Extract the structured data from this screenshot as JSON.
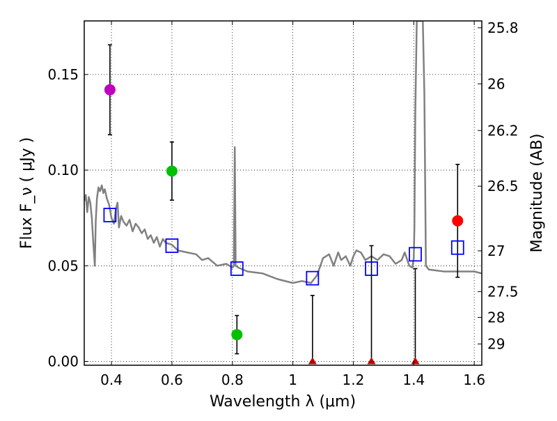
{
  "chart_data": {
    "type": "scatter",
    "title": "",
    "xlabel": "Wavelength  λ (μm)",
    "ylabel": "Flux  F_ν  ( μJy )",
    "ylabel2": "Magnitude (AB)",
    "xlim": [
      0.31,
      1.625
    ],
    "ylim": [
      -0.002,
      0.178
    ],
    "grid": true,
    "x_ticks": [
      0.4,
      0.6,
      0.8,
      1.0,
      1.2,
      1.4,
      1.6
    ],
    "x_tick_labels": [
      "0.4",
      "0.6",
      "0.8",
      "1",
      "1.2",
      "1.4",
      "1.6"
    ],
    "y_ticks": [
      0.0,
      0.05,
      0.1,
      0.15
    ],
    "y_tick_labels": [
      "0.00",
      "0.05",
      "0.10",
      "0.15"
    ],
    "right_ticks": [
      {
        "label": "25.8",
        "flux": 0.1744
      },
      {
        "label": "26",
        "flux": 0.1451
      },
      {
        "label": "26.2",
        "flux": 0.1207
      },
      {
        "label": "26.5",
        "flux": 0.0916
      },
      {
        "label": "27",
        "flux": 0.0578
      },
      {
        "label": "27.5",
        "flux": 0.0365
      },
      {
        "label": "28",
        "flux": 0.023
      },
      {
        "label": "29",
        "flux": 0.0091
      }
    ],
    "observed": [
      {
        "x": 0.395,
        "y": 0.142,
        "err": 0.0235,
        "color": "#bf00bf"
      },
      {
        "x": 0.6,
        "y": 0.0995,
        "err": 0.0152,
        "color": "#00c000"
      },
      {
        "x": 0.815,
        "y": 0.014,
        "err": 0.01,
        "color": "#00c000"
      },
      {
        "x": 1.545,
        "y": 0.0735,
        "err": 0.0295,
        "color": "#ff0000"
      }
    ],
    "upper_limits": [
      {
        "x": 1.065,
        "y": 0.0,
        "upper": 0.0345,
        "color": "#c00000"
      },
      {
        "x": 1.26,
        "y": 0.0,
        "upper": 0.0605,
        "color": "#c00000"
      },
      {
        "x": 1.405,
        "y": 0.0,
        "upper": 0.0485,
        "color": "#c00000"
      }
    ],
    "model_photometry": {
      "x": [
        0.395,
        0.6,
        0.815,
        1.065,
        1.26,
        1.405,
        1.545
      ],
      "y": [
        0.0765,
        0.0605,
        0.0485,
        0.0435,
        0.0485,
        0.056,
        0.0595
      ],
      "color": "#0000ff"
    },
    "template_spectrum": {
      "color": "#808080",
      "x": [
        0.31,
        0.315,
        0.32,
        0.325,
        0.33,
        0.335,
        0.34,
        0.345,
        0.348,
        0.352,
        0.357,
        0.362,
        0.368,
        0.373,
        0.378,
        0.385,
        0.392,
        0.4,
        0.408,
        0.415,
        0.42,
        0.425,
        0.432,
        0.44,
        0.45,
        0.46,
        0.47,
        0.48,
        0.49,
        0.5,
        0.51,
        0.52,
        0.53,
        0.54,
        0.55,
        0.56,
        0.57,
        0.58,
        0.6,
        0.62,
        0.65,
        0.68,
        0.7,
        0.72,
        0.75,
        0.78,
        0.8,
        0.805,
        0.808,
        0.811,
        0.82,
        0.85,
        0.9,
        0.95,
        1.0,
        1.03,
        1.06,
        1.08,
        1.1,
        1.12,
        1.135,
        1.15,
        1.16,
        1.175,
        1.19,
        1.2,
        1.21,
        1.225,
        1.24,
        1.26,
        1.28,
        1.3,
        1.32,
        1.34,
        1.36,
        1.37,
        1.385,
        1.395,
        1.4,
        1.402,
        1.405,
        1.41,
        1.42,
        1.43,
        1.435,
        1.44,
        1.45,
        1.5,
        1.55,
        1.6,
        1.625
      ],
      "y": [
        0.084,
        0.087,
        0.078,
        0.086,
        0.083,
        0.075,
        0.062,
        0.05,
        0.073,
        0.085,
        0.091,
        0.089,
        0.092,
        0.088,
        0.09,
        0.085,
        0.082,
        0.075,
        0.072,
        0.08,
        0.083,
        0.07,
        0.076,
        0.073,
        0.071,
        0.074,
        0.068,
        0.072,
        0.07,
        0.067,
        0.069,
        0.064,
        0.066,
        0.062,
        0.065,
        0.06,
        0.064,
        0.062,
        0.061,
        0.058,
        0.057,
        0.056,
        0.053,
        0.054,
        0.05,
        0.051,
        0.049,
        0.05,
        0.112,
        0.05,
        0.049,
        0.047,
        0.046,
        0.043,
        0.041,
        0.042,
        0.041,
        0.045,
        0.054,
        0.056,
        0.05,
        0.057,
        0.053,
        0.055,
        0.05,
        0.055,
        0.058,
        0.057,
        0.053,
        0.055,
        0.053,
        0.056,
        0.055,
        0.051,
        0.053,
        0.057,
        0.05,
        0.049,
        0.054,
        0.07,
        0.13,
        0.178,
        0.178,
        0.178,
        0.14,
        0.05,
        0.048,
        0.047,
        0.047,
        0.047,
        0.046
      ]
    }
  }
}
